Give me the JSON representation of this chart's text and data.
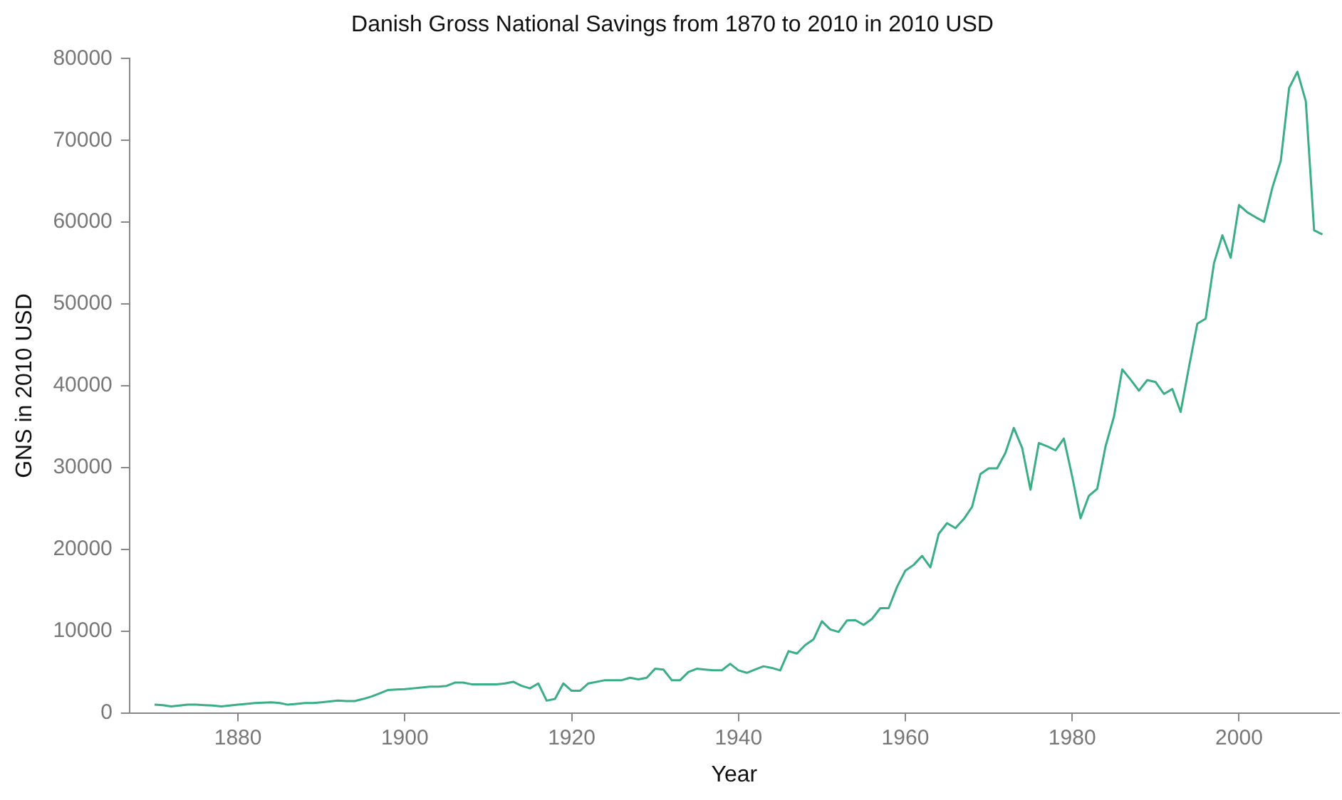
{
  "chart_data": {
    "type": "line",
    "title": "Danish Gross National Savings from 1870 to 2010 in 2010 USD",
    "xlabel": "Year",
    "ylabel": "GNS in 2010 USD",
    "x": [
      1870,
      1871,
      1872,
      1873,
      1874,
      1875,
      1876,
      1877,
      1878,
      1879,
      1880,
      1881,
      1882,
      1883,
      1884,
      1885,
      1886,
      1887,
      1888,
      1889,
      1890,
      1891,
      1892,
      1893,
      1894,
      1895,
      1896,
      1897,
      1898,
      1899,
      1900,
      1901,
      1902,
      1903,
      1904,
      1905,
      1906,
      1907,
      1908,
      1909,
      1910,
      1911,
      1912,
      1913,
      1914,
      1915,
      1916,
      1917,
      1918,
      1919,
      1920,
      1921,
      1922,
      1923,
      1924,
      1925,
      1926,
      1927,
      1928,
      1929,
      1930,
      1931,
      1932,
      1933,
      1934,
      1935,
      1936,
      1937,
      1938,
      1939,
      1940,
      1941,
      1942,
      1943,
      1944,
      1945,
      1946,
      1947,
      1948,
      1949,
      1950,
      1951,
      1952,
      1953,
      1954,
      1955,
      1956,
      1957,
      1958,
      1959,
      1960,
      1961,
      1962,
      1963,
      1964,
      1965,
      1966,
      1967,
      1968,
      1969,
      1970,
      1971,
      1972,
      1973,
      1974,
      1975,
      1976,
      1977,
      1978,
      1979,
      1980,
      1981,
      1982,
      1983,
      1984,
      1985,
      1986,
      1987,
      1988,
      1989,
      1990,
      1991,
      1992,
      1993,
      1994,
      1995,
      1996,
      1997,
      1998,
      1999,
      2000,
      2001,
      2002,
      2003,
      2004,
      2005,
      2006,
      2007,
      2008,
      2009,
      2010
    ],
    "series": [
      {
        "color": "#3aaf85",
        "values": [
          1000,
          950,
          800,
          900,
          1000,
          1000,
          950,
          900,
          800,
          900,
          1000,
          1100,
          1200,
          1250,
          1300,
          1200,
          1000,
          1100,
          1200,
          1200,
          1300,
          1400,
          1500,
          1450,
          1450,
          1700,
          2000,
          2400,
          2800,
          2850,
          2900,
          3000,
          3100,
          3200,
          3200,
          3300,
          3700,
          3700,
          3500,
          3500,
          3500,
          3500,
          3600,
          3800,
          3300,
          3000,
          3600,
          1500,
          1700,
          3600,
          2700,
          2700,
          3600,
          3800,
          4000,
          4000,
          4000,
          4300,
          4100,
          4300,
          5400,
          5300,
          4000,
          4000,
          5000,
          5400,
          5300,
          5200,
          5200,
          6000,
          5200,
          4900,
          5300,
          5700,
          5500,
          5200,
          7550,
          7250,
          8300,
          9000,
          11200,
          10200,
          9900,
          11300,
          11350,
          10750,
          11500,
          12800,
          12800,
          15400,
          17400,
          18100,
          19200,
          17800,
          21900,
          23200,
          22600,
          23700,
          25200,
          29200,
          29900,
          29900,
          31800,
          34850,
          32400,
          27300,
          33000,
          32600,
          32100,
          33550,
          28900,
          23800,
          26550,
          27400,
          32600,
          36200,
          42000,
          40750,
          39400,
          40700,
          40450,
          39000,
          39600,
          36800,
          42300,
          47600,
          48200,
          55000,
          58400,
          55650,
          62100,
          61200,
          60600,
          60050,
          64250,
          67500,
          76400,
          78400,
          74800,
          59000,
          58500
        ]
      }
    ],
    "xlim": [
      1867,
      2012
    ],
    "xticks": [
      1880,
      1900,
      1920,
      1940,
      1960,
      1980,
      2000
    ],
    "ylim": [
      0,
      80000
    ],
    "yticks": [
      0,
      10000,
      20000,
      30000,
      40000,
      50000,
      60000,
      70000,
      80000
    ],
    "grid": false,
    "legend": false,
    "marker": "none",
    "line_style": "solid"
  }
}
